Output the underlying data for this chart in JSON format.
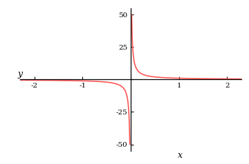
{
  "xlabel": "x",
  "ylabel": "y",
  "xlim": [
    -2.3,
    2.3
  ],
  "ylim": [
    -55,
    55
  ],
  "xticks": [
    -2,
    -1,
    0,
    1,
    2
  ],
  "yticks": [
    -50,
    -25,
    0,
    25,
    50
  ],
  "curve_color": "#ff5555",
  "curve_linewidth": 1.2,
  "background_color": "#ffffff",
  "clip_val": 50,
  "x_gap": 0.018,
  "num_points": 3000
}
